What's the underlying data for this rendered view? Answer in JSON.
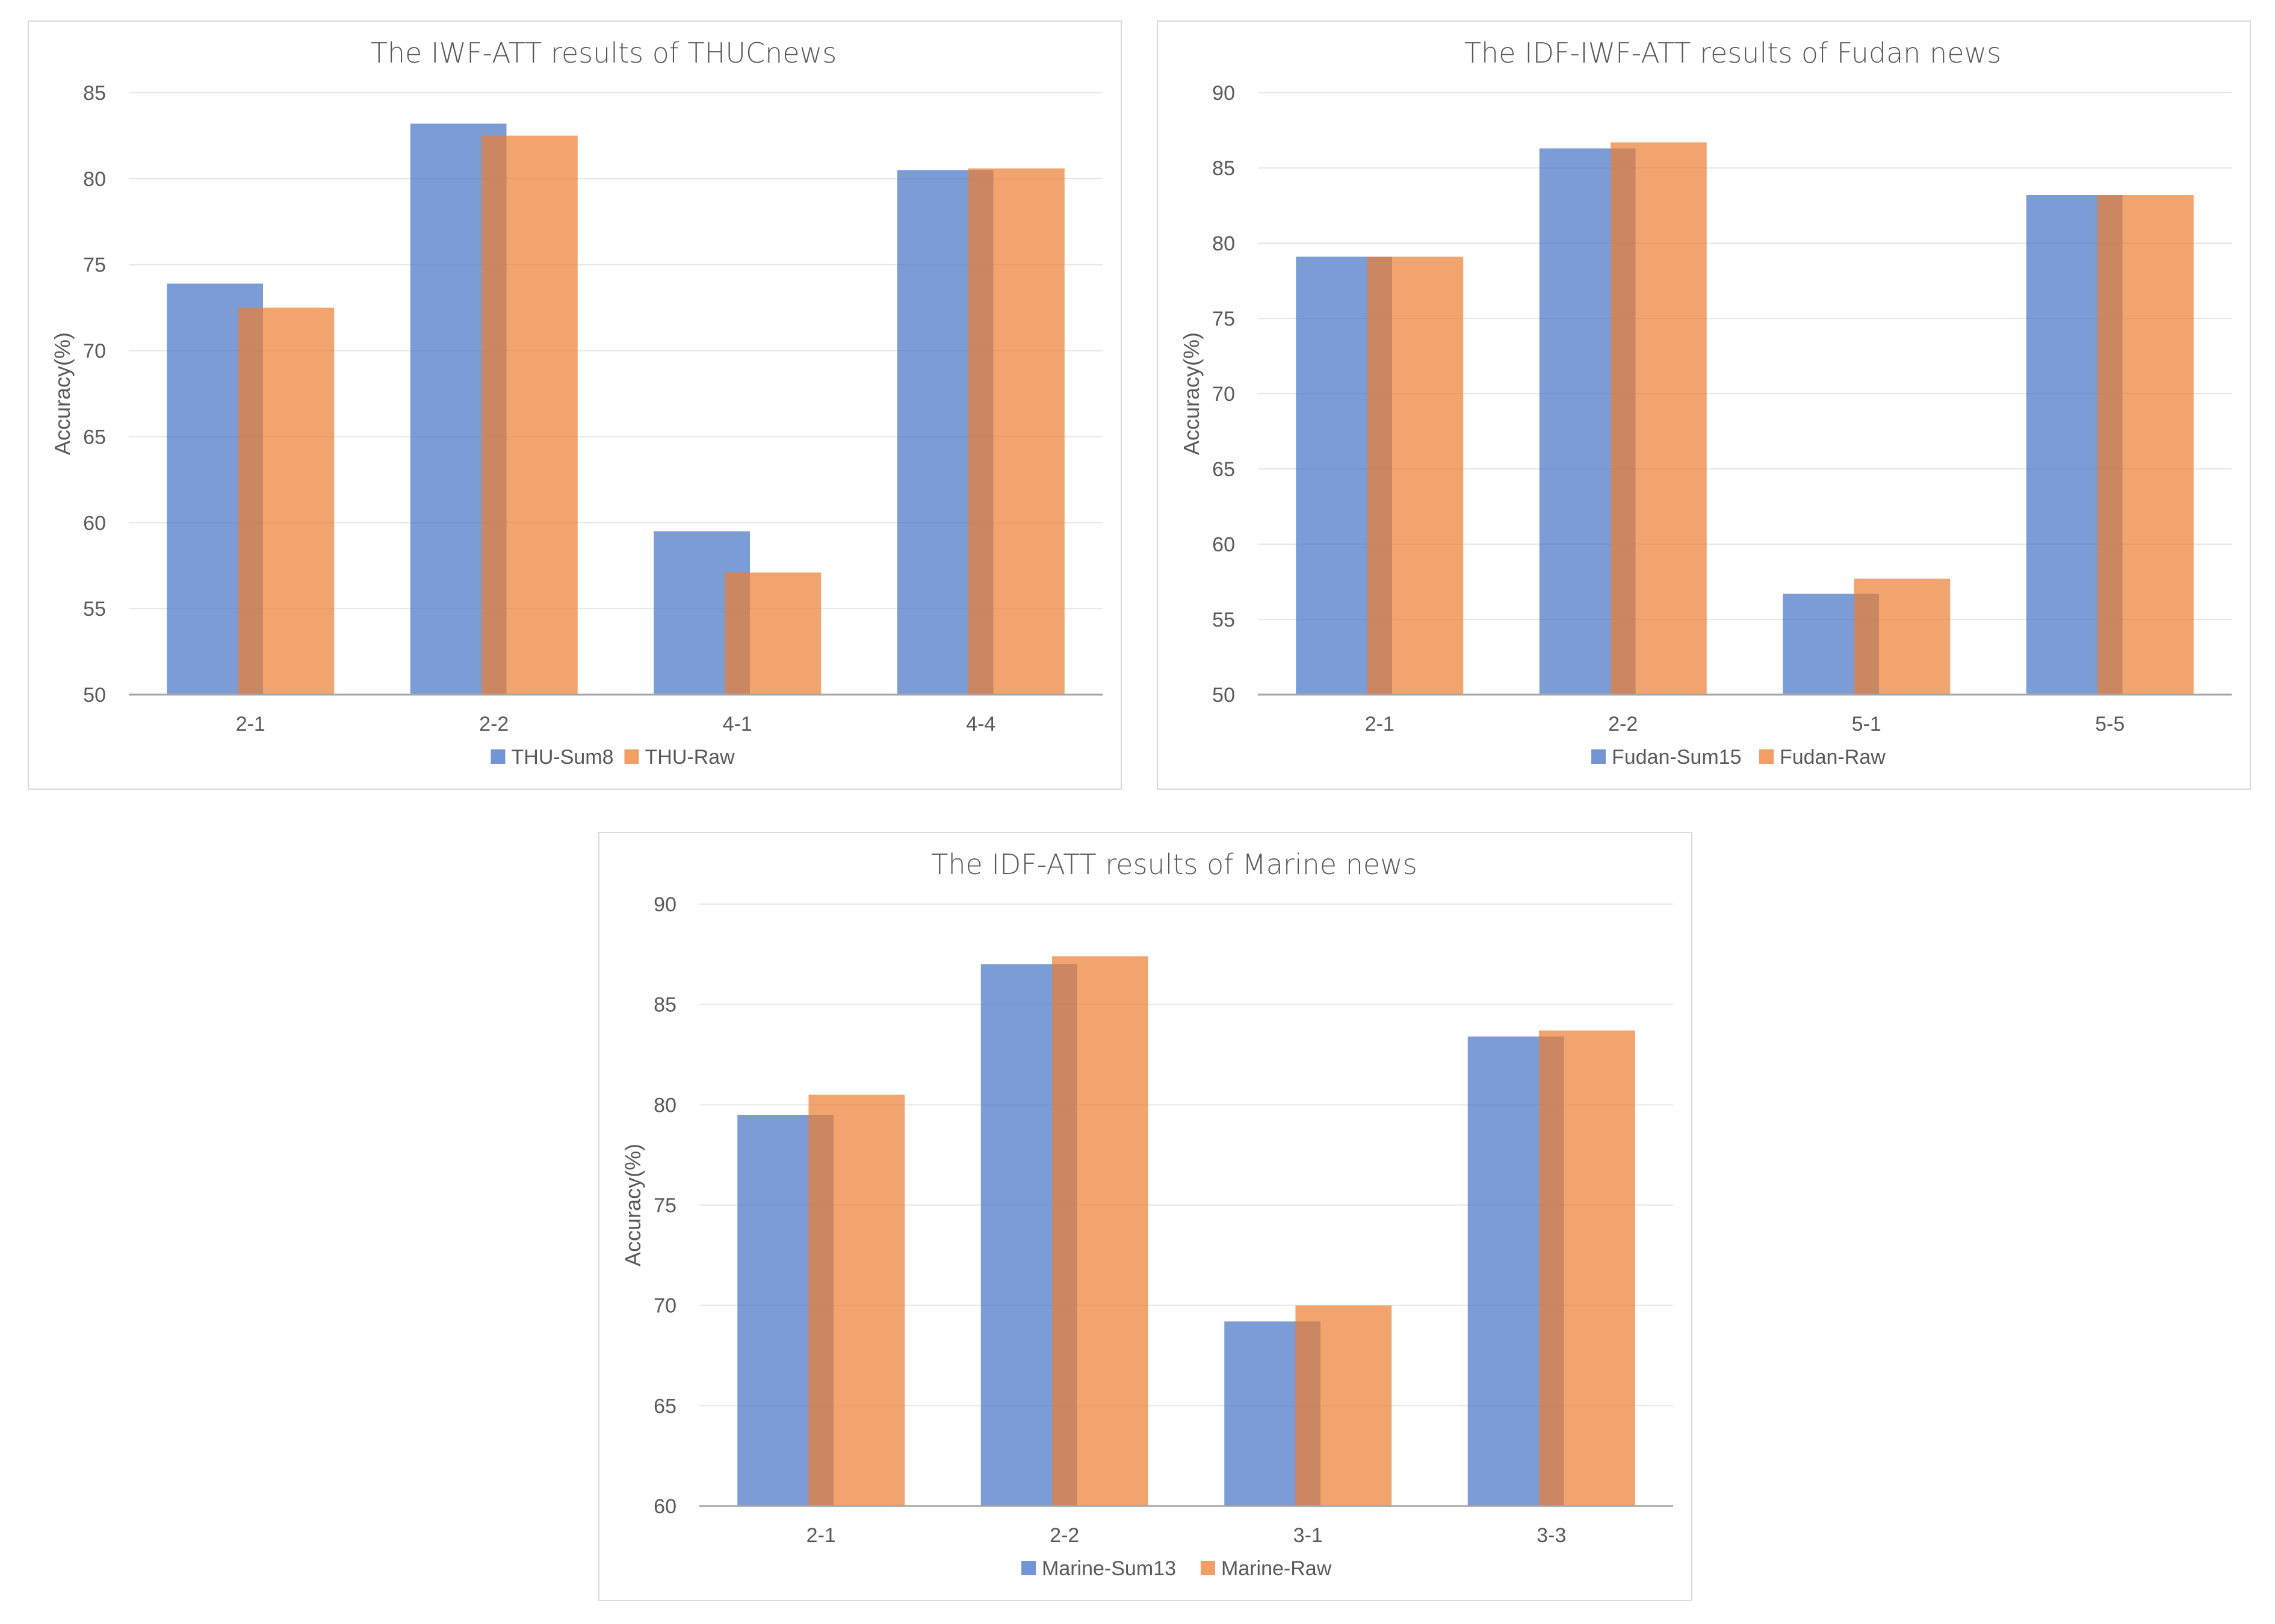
{
  "colors": {
    "series_a": "#4472C4",
    "series_b": "#ED7D31",
    "grid": "#e6e6e6",
    "axis": "#a6a6a6",
    "text": "#595959"
  },
  "chart_data": [
    {
      "type": "bar",
      "title": "The IWF-ATT results of THUCnews",
      "xlabel": "",
      "ylabel": "Accuracy(%)",
      "ylim": [
        50,
        85
      ],
      "yticks": [
        50,
        55,
        60,
        65,
        70,
        75,
        80,
        85
      ],
      "ytick_labels": [
        "50",
        "55",
        "60",
        "65",
        "70",
        "75",
        "80",
        "85"
      ],
      "grid": true,
      "legend": "bottom-center",
      "categories": [
        "2-1",
        "2-2",
        "4-1",
        "4-4"
      ],
      "series": [
        {
          "name": "THU-Sum8",
          "values": [
            73.9,
            83.2,
            59.5,
            80.5
          ]
        },
        {
          "name": "THU-Raw",
          "values": [
            72.5,
            82.5,
            57.1,
            80.6
          ]
        }
      ]
    },
    {
      "type": "bar",
      "title": "The IDF-IWF-ATT results of Fudan news",
      "xlabel": "",
      "ylabel": "Accuracy(%)",
      "ylim": [
        50,
        90
      ],
      "yticks": [
        50,
        55,
        60,
        65,
        70,
        75,
        80,
        85,
        90
      ],
      "ytick_labels": [
        "50",
        "55",
        "60",
        "65",
        "70",
        "75",
        "80",
        "85",
        "90"
      ],
      "grid": true,
      "legend": "bottom-center",
      "categories": [
        "2-1",
        "2-2",
        "5-1",
        "5-5"
      ],
      "series": [
        {
          "name": "Fudan-Sum15",
          "values": [
            79.1,
            86.3,
            56.7,
            83.2
          ]
        },
        {
          "name": "Fudan-Raw",
          "values": [
            79.1,
            86.7,
            57.7,
            83.2
          ]
        }
      ]
    },
    {
      "type": "bar",
      "title": "The IDF-ATT results of Marine news",
      "xlabel": "",
      "ylabel": "Accuracy(%)",
      "ylim": [
        60,
        90
      ],
      "yticks": [
        60,
        65,
        70,
        75,
        80,
        85,
        90
      ],
      "ytick_labels": [
        "60",
        "65",
        "70",
        "75",
        "80",
        "85",
        "90"
      ],
      "grid": true,
      "legend": "bottom-center",
      "categories": [
        "2-1",
        "2-2",
        "3-1",
        "3-3"
      ],
      "series": [
        {
          "name": "Marine-Sum13",
          "values": [
            79.5,
            87.0,
            69.2,
            83.4
          ]
        },
        {
          "name": "Marine-Raw",
          "values": [
            80.5,
            87.4,
            70.0,
            83.7
          ]
        }
      ]
    }
  ]
}
